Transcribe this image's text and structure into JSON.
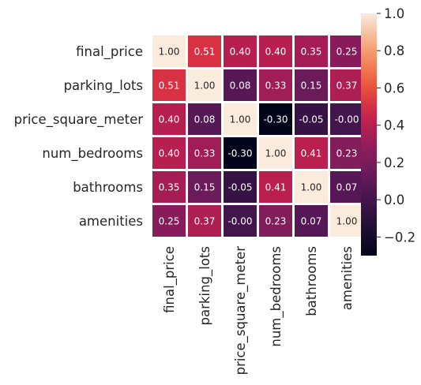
{
  "chart_data": {
    "type": "heatmap",
    "title": "",
    "xlabel": "",
    "ylabel": "",
    "rows": [
      "final_price",
      "parking_lots",
      "price_square_meter",
      "num_bedrooms",
      "bathrooms",
      "amenities"
    ],
    "columns": [
      "final_price",
      "parking_lots",
      "price_square_meter",
      "num_bedrooms",
      "bathrooms",
      "amenities"
    ],
    "values": [
      [
        1.0,
        0.51,
        0.4,
        0.4,
        0.35,
        0.25
      ],
      [
        0.51,
        1.0,
        0.08,
        0.33,
        0.15,
        0.37
      ],
      [
        0.4,
        0.08,
        1.0,
        -0.3,
        -0.05,
        -0.0
      ],
      [
        0.4,
        0.33,
        -0.3,
        1.0,
        0.41,
        0.23
      ],
      [
        0.35,
        0.15,
        -0.05,
        0.41,
        1.0,
        0.07
      ],
      [
        0.25,
        0.37,
        -0.0,
        0.23,
        0.07,
        1.0
      ]
    ],
    "labels": [
      [
        "1.00",
        "0.51",
        "0.40",
        "0.40",
        "0.35",
        "0.25"
      ],
      [
        "0.51",
        "1.00",
        "0.08",
        "0.33",
        "0.15",
        "0.37"
      ],
      [
        "0.40",
        "0.08",
        "1.00",
        "-0.30",
        "-0.05",
        "-0.00"
      ],
      [
        "0.40",
        "0.33",
        "-0.30",
        "1.00",
        "0.41",
        "0.23"
      ],
      [
        "0.35",
        "0.15",
        "-0.05",
        "0.41",
        "1.00",
        "0.07"
      ],
      [
        "0.25",
        "0.37",
        "-0.00",
        "0.23",
        "0.07",
        "1.00"
      ]
    ],
    "colorbar": {
      "vmin": -0.3,
      "vmax": 1.0,
      "ticks": [
        1.0,
        0.8,
        0.6,
        0.4,
        0.2,
        0.0,
        -0.2
      ],
      "tick_labels": [
        "1.0",
        "0.8",
        "0.6",
        "0.4",
        "0.2",
        "0.0",
        "−0.2"
      ],
      "colormap": "rocket"
    },
    "annotated": true,
    "grid": false
  }
}
